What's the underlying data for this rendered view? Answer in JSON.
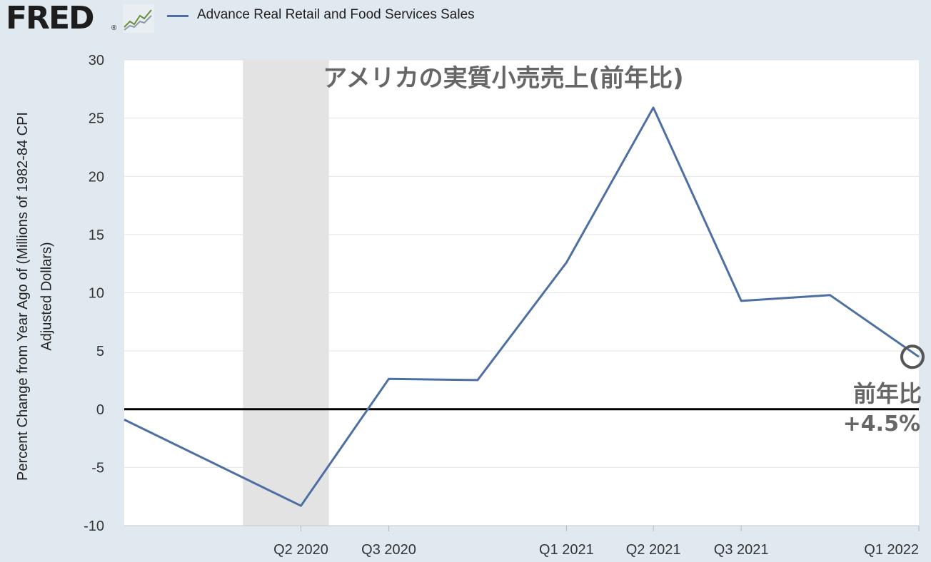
{
  "header": {
    "logo_text": "FRED",
    "logo_reg": "®",
    "legend_label": "Advance Real Retail and Food Services Sales",
    "series_color": "#4e6fa3"
  },
  "chart_data": {
    "type": "line",
    "title": "アメリカの実質小売売上(前年比)",
    "xlabel": "",
    "ylabel_line1": "Percent Change from Year Ago of (Millions of 1982-84 CPI",
    "ylabel_line2": "Adjusted Dollars)",
    "ylim": [
      -10,
      30
    ],
    "yticks": [
      -10,
      -5,
      0,
      5,
      10,
      15,
      20,
      25,
      30
    ],
    "x_ticks": [
      "Q2 2020",
      "Q3 2020",
      "Q1 2021",
      "Q2 2021",
      "Q3 2021",
      "Q1 2022"
    ],
    "x_range": [
      "2019-10-01",
      "2022-01-01"
    ],
    "recession": {
      "start": "2020-02-01",
      "end": "2020-04-30"
    },
    "grid": true,
    "zero_line": true,
    "series": [
      {
        "name": "Advance Real Retail and Food Services Sales",
        "color": "#4e6fa3",
        "x": [
          "2019-10-01",
          "2020-04-01",
          "2020-07-01",
          "2020-10-01",
          "2021-01-01",
          "2021-04-01",
          "2021-07-01",
          "2021-10-01",
          "2022-01-01"
        ],
        "y": [
          -0.9,
          -8.3,
          2.6,
          2.5,
          12.6,
          25.9,
          9.3,
          9.8,
          4.5
        ]
      }
    ],
    "annotation": {
      "line1": "前年比",
      "line2": "+4.5%",
      "marker_x": "2022-01-01",
      "marker_y": 4.5
    }
  }
}
